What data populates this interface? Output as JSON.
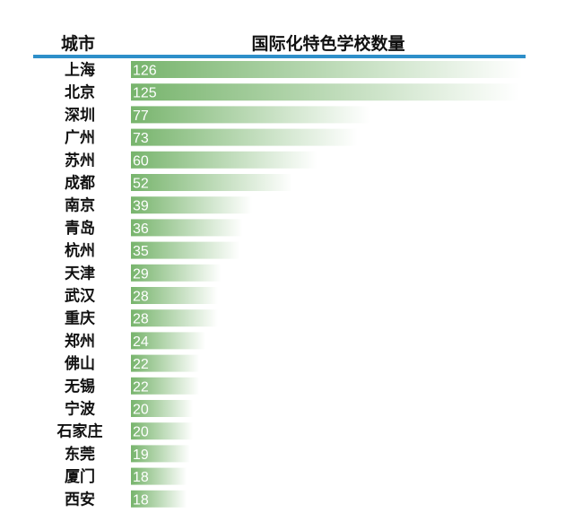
{
  "header": {
    "city_label": "城市",
    "metric_label": "国际化特色学校数量"
  },
  "colors": {
    "rule": "#2e8fc9",
    "bar_start": "#77b46c",
    "bar_end": "#ffffff",
    "value_text": "#ffffff",
    "city_text": "#111111"
  },
  "chart_data": {
    "type": "bar",
    "orientation": "horizontal",
    "title": "",
    "xlabel": "国际化特色学校数量",
    "ylabel": "城市",
    "xlim": [
      0,
      126
    ],
    "grid": false,
    "legend": "none",
    "categories": [
      "上海",
      "北京",
      "深圳",
      "广州",
      "苏州",
      "成都",
      "南京",
      "青岛",
      "杭州",
      "天津",
      "武汉",
      "重庆",
      "郑州",
      "佛山",
      "无锡",
      "宁波",
      "石家庄",
      "东莞",
      "厦门",
      "西安"
    ],
    "values": [
      126,
      125,
      77,
      73,
      60,
      52,
      39,
      36,
      35,
      29,
      28,
      28,
      24,
      22,
      22,
      20,
      20,
      19,
      18,
      18
    ]
  }
}
